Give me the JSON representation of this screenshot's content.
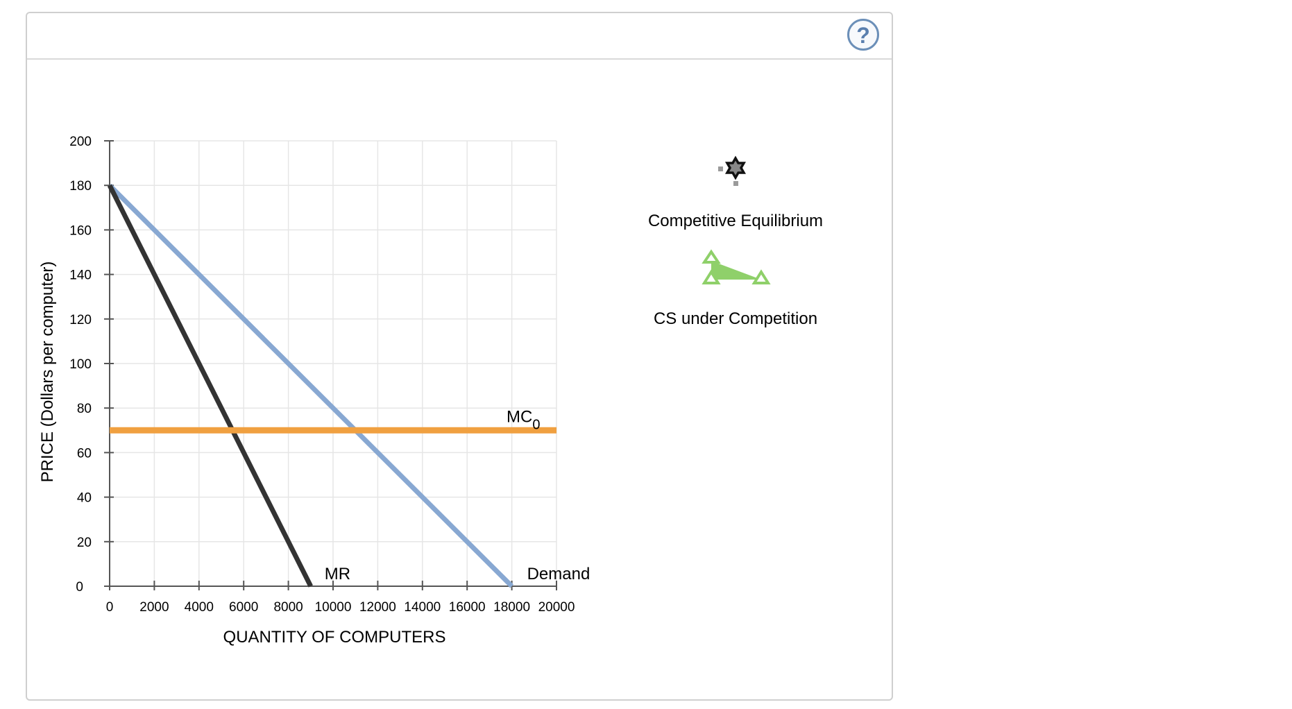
{
  "help": {
    "glyph": "?",
    "icon": "question-circle-icon"
  },
  "chart_data": {
    "type": "line",
    "xlabel": "QUANTITY OF COMPUTERS",
    "ylabel": "PRICE (Dollars per computer)",
    "xlim": [
      0,
      20000
    ],
    "ylim": [
      0,
      200
    ],
    "x_ticks": [
      0,
      2000,
      4000,
      6000,
      8000,
      10000,
      12000,
      14000,
      16000,
      18000,
      20000
    ],
    "y_ticks": [
      0,
      20,
      40,
      60,
      80,
      100,
      120,
      140,
      160,
      180,
      200
    ],
    "grid": true,
    "series": [
      {
        "name": "Demand",
        "color": "#88a8d2",
        "points": [
          [
            0,
            180
          ],
          [
            18000,
            0
          ]
        ]
      },
      {
        "name": "MR",
        "color": "#333333",
        "points": [
          [
            0,
            180
          ],
          [
            9000,
            0
          ]
        ]
      },
      {
        "name": "MC",
        "subscript": "0",
        "color": "#f0a040",
        "points": [
          [
            0,
            70
          ],
          [
            20000,
            70
          ]
        ]
      }
    ]
  },
  "palette": {
    "equilibrium": {
      "label": "Competitive Equilibrium",
      "icon": "star-point-icon",
      "color": "#111111"
    },
    "cs": {
      "label": "CS under Competition",
      "icon": "triangle-area-icon",
      "color": "#8fd06a"
    }
  }
}
